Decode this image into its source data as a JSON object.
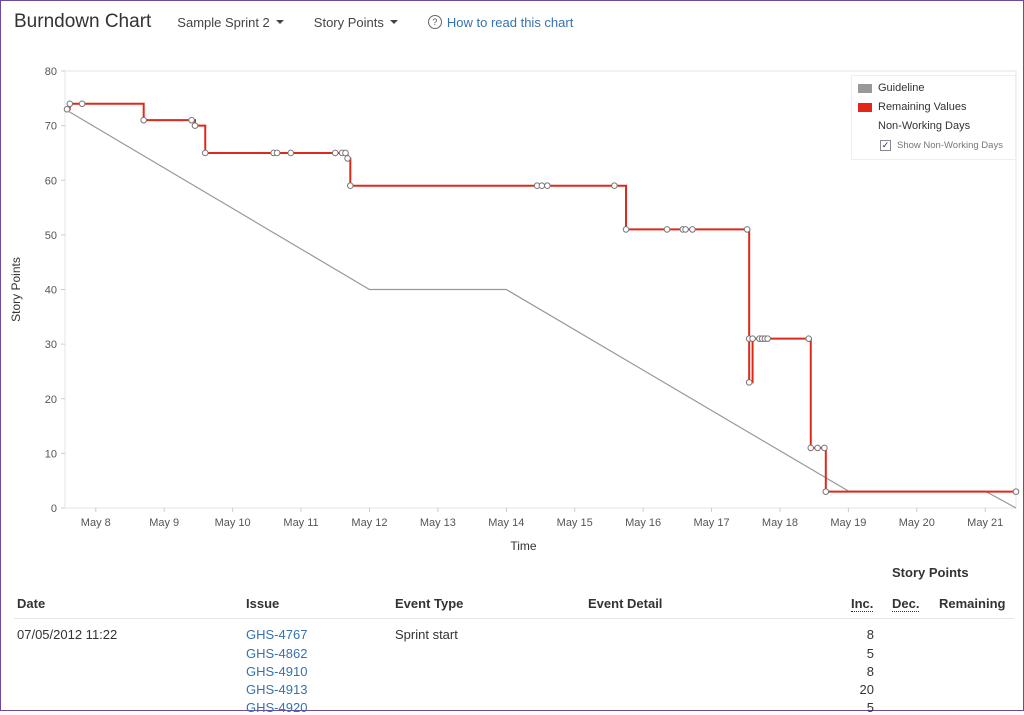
{
  "header": {
    "title": "Burndown Chart",
    "sprint": "Sample Sprint 2",
    "metric": "Story Points",
    "help_link": "How to read this chart",
    "help_icon_glyph": "?"
  },
  "legend": {
    "guideline": "Guideline",
    "remaining": "Remaining Values",
    "non_working": "Non-Working Days",
    "show_non_working": "Show Non-Working Days",
    "check_glyph": "✓",
    "colors": {
      "guideline": "#999999",
      "remaining": "#e0281a"
    }
  },
  "chart_data": {
    "type": "line",
    "xlabel": "Time",
    "ylabel": "Story Points",
    "ylim": [
      0,
      80
    ],
    "yticks": [
      0,
      10,
      20,
      30,
      40,
      50,
      60,
      70,
      80
    ],
    "xlim": [
      7.55,
      21.45
    ],
    "x_ticks": [
      {
        "x": 8,
        "label": "May 8"
      },
      {
        "x": 9,
        "label": "May 9"
      },
      {
        "x": 10,
        "label": "May 10"
      },
      {
        "x": 11,
        "label": "May 11"
      },
      {
        "x": 12,
        "label": "May 12"
      },
      {
        "x": 13,
        "label": "May 13"
      },
      {
        "x": 14,
        "label": "May 14"
      },
      {
        "x": 15,
        "label": "May 15"
      },
      {
        "x": 16,
        "label": "May 16"
      },
      {
        "x": 17,
        "label": "May 17"
      },
      {
        "x": 18,
        "label": "May 18"
      },
      {
        "x": 19,
        "label": "May 19"
      },
      {
        "x": 20,
        "label": "May 20"
      },
      {
        "x": 21,
        "label": "May 21"
      }
    ],
    "legend_position": "top-right",
    "series": [
      {
        "name": "Guideline",
        "color": "#999999",
        "points": [
          [
            7.55,
            73
          ],
          [
            12.0,
            40
          ],
          [
            14.0,
            40
          ],
          [
            19.0,
            3.1
          ],
          [
            21.0,
            3.1
          ],
          [
            21.45,
            0
          ]
        ]
      },
      {
        "name": "Remaining Values",
        "color": "#e0281a",
        "step": true,
        "points": [
          [
            7.58,
            73
          ],
          [
            7.62,
            74
          ],
          [
            7.8,
            74
          ],
          [
            8.7,
            71
          ],
          [
            9.4,
            71
          ],
          [
            9.45,
            70
          ],
          [
            9.6,
            65
          ],
          [
            10.6,
            65
          ],
          [
            10.65,
            65
          ],
          [
            10.85,
            65
          ],
          [
            11.5,
            65
          ],
          [
            11.6,
            65
          ],
          [
            11.65,
            65
          ],
          [
            11.68,
            64
          ],
          [
            11.72,
            59
          ],
          [
            14.45,
            59
          ],
          [
            14.52,
            59
          ],
          [
            14.6,
            59
          ],
          [
            15.58,
            59
          ],
          [
            15.75,
            51
          ],
          [
            16.35,
            51
          ],
          [
            16.58,
            51
          ],
          [
            16.62,
            51
          ],
          [
            16.72,
            51
          ],
          [
            17.52,
            51
          ],
          [
            17.55,
            31
          ],
          [
            17.55,
            23
          ],
          [
            17.6,
            31
          ],
          [
            17.7,
            31
          ],
          [
            17.74,
            31
          ],
          [
            17.78,
            31
          ],
          [
            17.82,
            31
          ],
          [
            18.42,
            31
          ],
          [
            18.45,
            11
          ],
          [
            18.55,
            11
          ],
          [
            18.65,
            11
          ],
          [
            18.67,
            3
          ],
          [
            21.45,
            3
          ]
        ]
      }
    ]
  },
  "table": {
    "story_points_caption": "Story Points",
    "headers": {
      "date": "Date",
      "issue": "Issue",
      "event_type": "Event Type",
      "event_detail": "Event Detail",
      "inc": "Inc.",
      "dec": "Dec.",
      "remaining": "Remaining"
    },
    "rows": [
      {
        "date": "07/05/2012 11:22",
        "issue": "GHS-4767",
        "event_type": "Sprint start",
        "inc": "8"
      },
      {
        "date": "",
        "issue": "GHS-4862",
        "event_type": "",
        "inc": "5"
      },
      {
        "date": "",
        "issue": "GHS-4910",
        "event_type": "",
        "inc": "8"
      },
      {
        "date": "",
        "issue": "GHS-4913",
        "event_type": "",
        "inc": "20"
      },
      {
        "date": "",
        "issue": "GHS-4920",
        "event_type": "",
        "inc": "5"
      }
    ]
  }
}
